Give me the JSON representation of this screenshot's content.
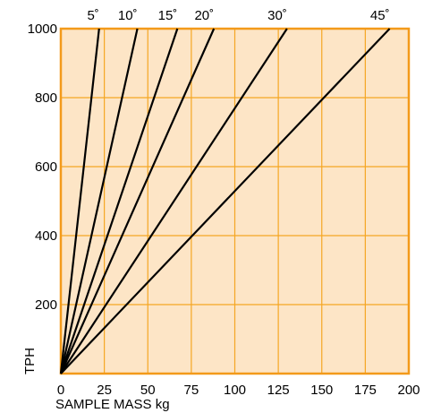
{
  "chart_data": {
    "type": "line",
    "title": "",
    "xlabel": "SAMPLE MASS kg",
    "ylabel": "TPH",
    "xlim": [
      0,
      200
    ],
    "ylim": [
      0,
      1000
    ],
    "x_ticks": [
      0,
      25,
      50,
      75,
      100,
      125,
      150,
      175,
      200
    ],
    "y_ticks": [
      200,
      400,
      600,
      800,
      1000
    ],
    "grid": true,
    "series": [
      {
        "name": "5˚",
        "x": [
          0,
          22
        ],
        "y": [
          0,
          1000
        ]
      },
      {
        "name": "10˚",
        "x": [
          0,
          44
        ],
        "y": [
          0,
          1000
        ]
      },
      {
        "name": "15˚",
        "x": [
          0,
          67
        ],
        "y": [
          0,
          1000
        ]
      },
      {
        "name": "20˚",
        "x": [
          0,
          88
        ],
        "y": [
          0,
          1000
        ]
      },
      {
        "name": "30˚",
        "x": [
          0,
          130
        ],
        "y": [
          0,
          1000
        ]
      },
      {
        "name": "45˚",
        "x": [
          0,
          189
        ],
        "y": [
          0,
          1000
        ]
      }
    ],
    "colors": {
      "plot_background": "#fde5c6",
      "grid": "#f5a623",
      "frame": "#f39a1a",
      "lines": "#000000"
    }
  }
}
